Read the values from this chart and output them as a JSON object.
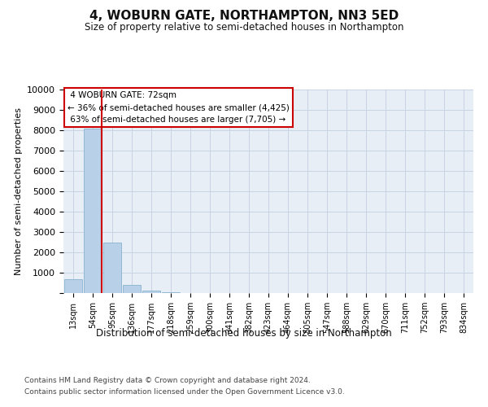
{
  "title": "4, WOBURN GATE, NORTHAMPTON, NN3 5ED",
  "subtitle": "Size of property relative to semi-detached houses in Northampton",
  "xlabel": "Distribution of semi-detached houses by size in Northampton",
  "ylabel": "Number of semi-detached properties",
  "footer1": "Contains HM Land Registry data © Crown copyright and database right 2024.",
  "footer2": "Contains public sector information licensed under the Open Government Licence v3.0.",
  "bin_labels": [
    "13sqm",
    "54sqm",
    "95sqm",
    "136sqm",
    "177sqm",
    "218sqm",
    "259sqm",
    "300sqm",
    "341sqm",
    "382sqm",
    "423sqm",
    "464sqm",
    "505sqm",
    "547sqm",
    "588sqm",
    "629sqm",
    "670sqm",
    "711sqm",
    "752sqm",
    "793sqm",
    "834sqm"
  ],
  "bar_values": [
    700,
    8100,
    2500,
    420,
    130,
    60,
    20,
    8,
    0,
    0,
    0,
    0,
    0,
    0,
    0,
    0,
    0,
    0,
    0,
    0,
    0
  ],
  "bar_color": "#b8d0e8",
  "bar_edge_color": "#7aaac8",
  "grid_color": "#c8d4e4",
  "background_color": "#e8eef6",
  "property_label": "4 WOBURN GATE: 72sqm",
  "pct_smaller": 36,
  "n_smaller": 4425,
  "pct_larger": 63,
  "n_larger": 7705,
  "vline_color": "#cc0000",
  "annotation_box_edge": "#cc0000",
  "ylim": [
    0,
    10000
  ],
  "yticks": [
    0,
    1000,
    2000,
    3000,
    4000,
    5000,
    6000,
    7000,
    8000,
    9000,
    10000
  ]
}
